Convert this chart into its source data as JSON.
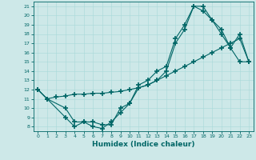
{
  "title": "",
  "xlabel": "Humidex (Indice chaleur)",
  "ylabel": "",
  "background_color": "#cde8e8",
  "line_color": "#006666",
  "xlim": [
    -0.5,
    23.5
  ],
  "ylim": [
    7.5,
    21.5
  ],
  "xticks": [
    0,
    1,
    2,
    3,
    4,
    5,
    6,
    7,
    8,
    9,
    10,
    11,
    12,
    13,
    14,
    15,
    16,
    17,
    18,
    19,
    20,
    21,
    22,
    23
  ],
  "yticks": [
    8,
    9,
    10,
    11,
    12,
    13,
    14,
    15,
    16,
    17,
    18,
    19,
    20,
    21
  ],
  "series": [
    {
      "x": [
        0,
        1,
        3,
        4,
        5,
        6,
        7,
        8,
        9,
        10,
        11,
        12,
        13,
        14,
        15,
        16,
        17,
        18,
        19,
        20,
        21,
        22,
        23
      ],
      "y": [
        12,
        11,
        9,
        8,
        8.5,
        8,
        7.8,
        8.5,
        9.5,
        10.5,
        12.5,
        13,
        14,
        14.5,
        17.5,
        19,
        21,
        21,
        19.5,
        18,
        16.5,
        18,
        15
      ]
    },
    {
      "x": [
        0,
        1,
        3,
        4,
        5,
        6,
        7,
        8,
        9,
        10,
        11,
        12,
        13,
        14,
        15,
        16,
        17,
        18,
        19,
        20,
        21,
        22,
        23
      ],
      "y": [
        12,
        11,
        10,
        8.5,
        8.5,
        8.5,
        8.2,
        8.2,
        10,
        10.5,
        12.2,
        12.5,
        13,
        14,
        17,
        18.5,
        21,
        20.5,
        19.5,
        18.5,
        16.5,
        15,
        15
      ]
    },
    {
      "x": [
        0,
        1,
        2,
        3,
        4,
        5,
        6,
        7,
        8,
        9,
        10,
        11,
        12,
        13,
        14,
        15,
        16,
        17,
        18,
        19,
        20,
        21,
        22,
        23
      ],
      "y": [
        12,
        11,
        11.2,
        11.3,
        11.5,
        11.5,
        11.6,
        11.6,
        11.7,
        11.8,
        12.0,
        12.2,
        12.5,
        13.0,
        13.5,
        14.0,
        14.5,
        15.0,
        15.5,
        16.0,
        16.5,
        17.0,
        17.5,
        15
      ]
    }
  ]
}
